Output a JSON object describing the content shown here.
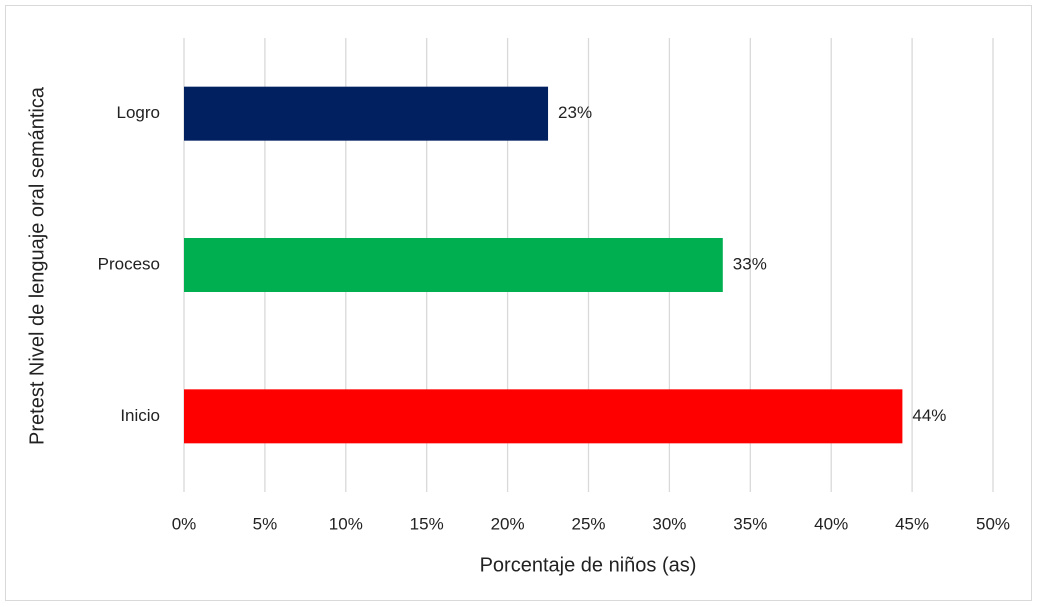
{
  "chart_data": {
    "type": "hbar",
    "x_label": "Porcentaje de niños (as)",
    "y_label": "Pretest Nivel de lenguaje oral semántica",
    "categories": [
      "Logro",
      "Proceso",
      "Inicio"
    ],
    "values": [
      22.5,
      33.3,
      44.4
    ],
    "value_labels": [
      "23%",
      "33%",
      "44%"
    ],
    "colors": [
      "#002060",
      "#00b050",
      "#ff0000"
    ],
    "xlim": [
      0,
      50
    ],
    "xticks": [
      {
        "value": 0,
        "label": "0%"
      },
      {
        "value": 5,
        "label": "5%"
      },
      {
        "value": 10,
        "label": "10%"
      },
      {
        "value": 15,
        "label": "15%"
      },
      {
        "value": 20,
        "label": "20%"
      },
      {
        "value": 25,
        "label": "25%"
      },
      {
        "value": 30,
        "label": "30%"
      },
      {
        "value": 35,
        "label": "35%"
      },
      {
        "value": 40,
        "label": "40%"
      },
      {
        "value": 45,
        "label": "45%"
      },
      {
        "value": 50,
        "label": "50%"
      }
    ],
    "grid": true
  }
}
